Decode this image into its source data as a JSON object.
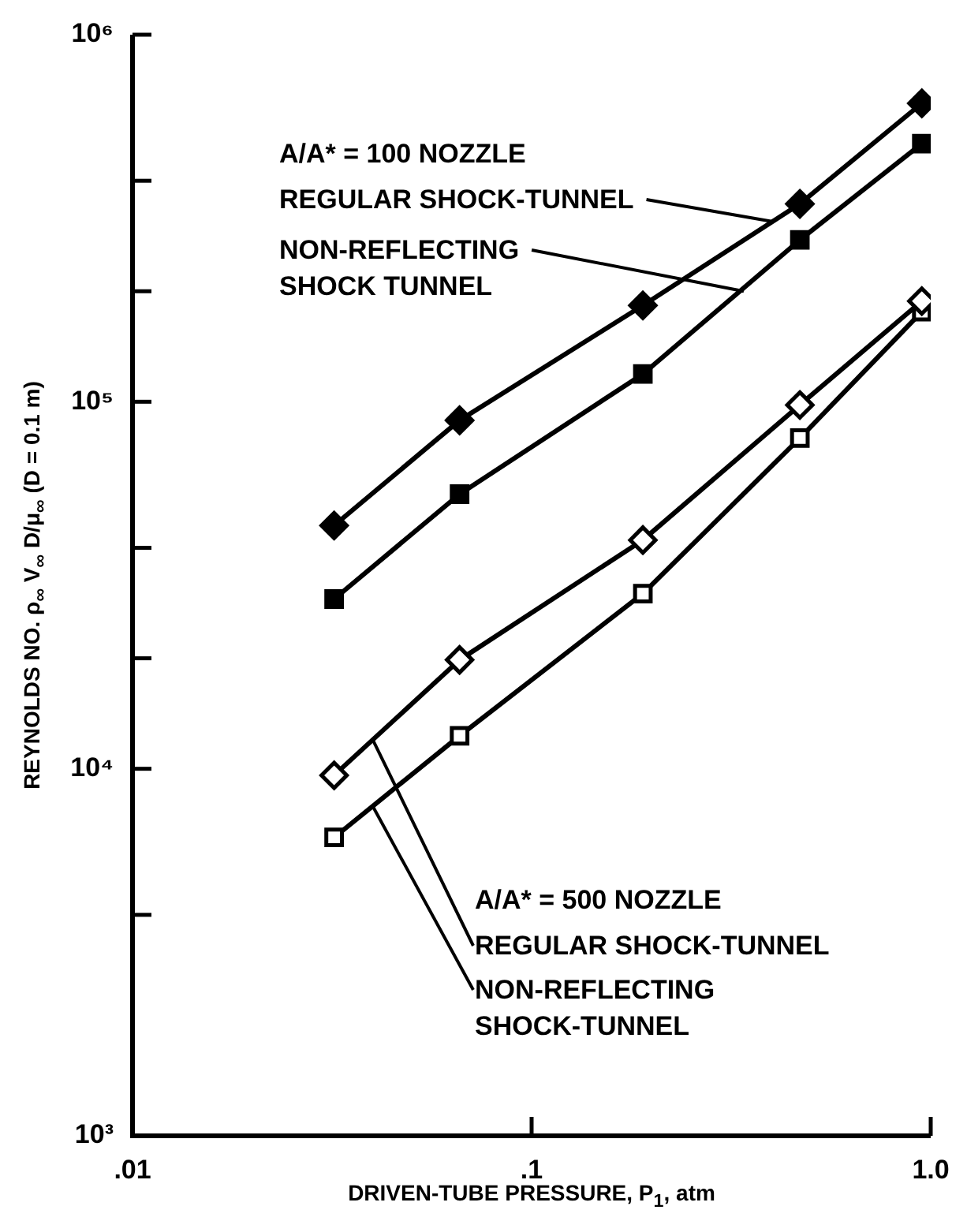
{
  "chart_data": {
    "type": "line",
    "xlabel": "DRIVEN-TUBE PRESSURE, P$_{1}$, atm",
    "ylabel": "REYNOLDS NO. ρ$_{∞}$ V$_{∞}$ D/μ$_{∞}$  (D = 0.1 m)",
    "log": "xy",
    "grid": false,
    "legend": false,
    "line_style": "solid",
    "xlim": [
      0.01,
      1
    ],
    "xticks": [
      {
        "value": 0.01,
        "label": ".01"
      },
      {
        "value": 0.1,
        "label": ".1"
      },
      {
        "value": 1,
        "label": "1.0"
      }
    ],
    "ylim": [
      1000,
      1000000
    ],
    "yticks": [
      {
        "value": 1000,
        "label": "10³"
      },
      {
        "value": 4000,
        "label": null
      },
      {
        "value": 10000,
        "label": "10⁴"
      },
      {
        "value": 20000,
        "label": null
      },
      {
        "value": 40000,
        "label": null
      },
      {
        "value": 100000,
        "label": "10⁵"
      },
      {
        "value": 200000,
        "label": null
      },
      {
        "value": 400000,
        "label": null
      },
      {
        "value": 1000000,
        "label": "10⁶"
      }
    ],
    "series": [
      {
        "color": "#000000",
        "marker": "diamond",
        "x": [
          0.032,
          0.066,
          0.19,
          0.47,
          0.95
        ],
        "values": [
          46000,
          89000,
          183000,
          346000,
          650000
        ]
      },
      {
        "color": "#000000",
        "marker": "square",
        "x": [
          0.032,
          0.066,
          0.19,
          0.47,
          0.95
        ],
        "values": [
          29000,
          56000,
          119000,
          276000,
          505000
        ]
      },
      {
        "color": "#000000",
        "marker": "diamond",
        "x": [
          0.032,
          0.066,
          0.19,
          0.47,
          0.95
        ],
        "values": [
          9600,
          19800,
          42000,
          98000,
          188000
        ]
      },
      {
        "color": "#000000",
        "marker": "square",
        "x": [
          0.032,
          0.066,
          0.19,
          0.47,
          0.95
        ],
        "values": [
          6500,
          12300,
          30000,
          79600,
          176000
        ]
      }
    ],
    "annotations": [
      "A/A* = 100 NOZZLE",
      {
        "text": "REGULAR SHOCK-TUNNEL",
        "x": 0.4,
        "y": 310000
      },
      {
        "text": "NON-REFLECTING\nSHOCK TUNNEL",
        "x": 0.34,
        "y": 200000
      },
      "A/A* = 500 NOZZLE",
      {
        "text": "REGULAR SHOCK-TUNNEL",
        "x": 0.04,
        "y": 12000
      },
      {
        "text": "NON-REFLECTING\nSHOCK-TUNNEL",
        "x": 0.04,
        "y": 7900
      }
    ]
  }
}
